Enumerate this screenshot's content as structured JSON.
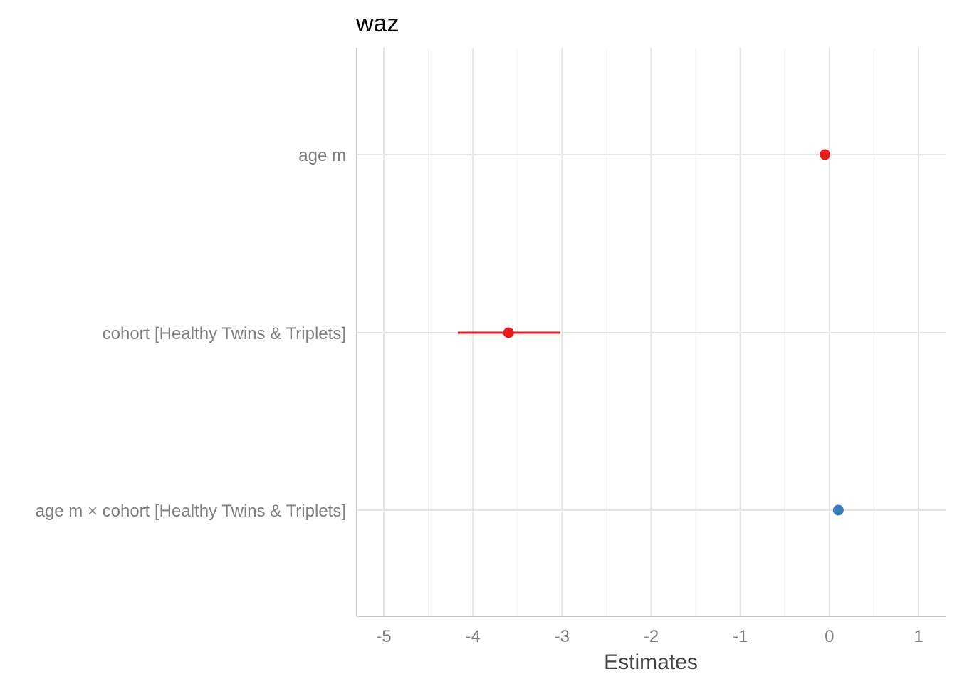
{
  "chart_data": {
    "type": "forest",
    "title": "waz",
    "xlabel": "Estimates",
    "xlim": [
      -5.3,
      1.3
    ],
    "xticks": [
      -5,
      -4,
      -3,
      -2,
      -1,
      0,
      1
    ],
    "xtick_labels": [
      "-5",
      "-4",
      "-3",
      "-2",
      "-1",
      "0",
      "1"
    ],
    "grid": true,
    "terms": [
      {
        "label": "age m",
        "estimate": -0.05,
        "ci": [
          -0.08,
          -0.02
        ],
        "color": "#e41a1c"
      },
      {
        "label": "cohort [Healthy Twins & Triplets]",
        "estimate": -3.6,
        "ci": [
          -4.17,
          -3.02
        ],
        "color": "#e41a1c"
      },
      {
        "label": "age m × cohort [Healthy Twins & Triplets]",
        "estimate": 0.1,
        "ci": [
          0.07,
          0.13
        ],
        "color": "#377eb8"
      }
    ]
  }
}
